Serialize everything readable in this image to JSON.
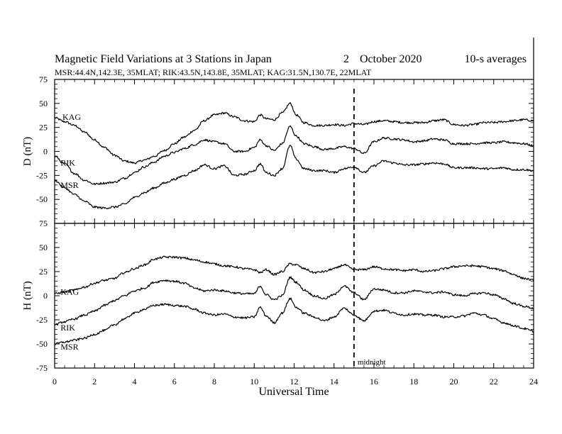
{
  "chart_data": {
    "type": "line",
    "title": "Magnetic Field Variations at 3 Stations in Japan",
    "date_day": "2",
    "date_month_year": "October 2020",
    "averaging": "10-s averages",
    "stations_info": "MSR:44.4N,142.3E, 35MLAT;  RIK:43.5N,143.8E, 35MLAT;  KAG:31.5N,130.7E, 22MLAT",
    "xlabel": "Universal Time",
    "xlim": [
      0,
      24
    ],
    "x_ticks": [
      "0",
      "2",
      "4",
      "6",
      "8",
      "10",
      "12",
      "14",
      "16",
      "18",
      "20",
      "22",
      "24"
    ],
    "annotation": {
      "label": "midnight",
      "x": 15
    },
    "panels": [
      {
        "component": "D",
        "ylabel": "D (nT)",
        "ylim": [
          -75,
          75
        ],
        "y_ticks": [
          "75",
          "50",
          "25",
          "0",
          "-25",
          "-50",
          "-75"
        ],
        "series": [
          {
            "name": "KAG",
            "label_x": 0.25,
            "label_y": 36,
            "x": [
              0,
              0.5,
              1,
              1.5,
              2,
              2.5,
              3,
              3.5,
              4,
              4.5,
              5,
              5.5,
              6,
              6.5,
              7,
              7.5,
              8,
              8.5,
              9,
              9.5,
              10,
              10.3,
              10.6,
              11,
              11.4,
              11.8,
              12.1,
              12.5,
              13,
              13.5,
              14,
              14.5,
              15,
              15.5,
              16,
              16.5,
              17,
              17.5,
              18,
              18.5,
              19,
              19.5,
              20,
              20.5,
              21,
              21.5,
              22,
              22.5,
              23,
              23.5,
              24
            ],
            "y": [
              35,
              31,
              27,
              20,
              12,
              4,
              -4,
              -10,
              -12,
              -9,
              -5,
              1,
              8,
              15,
              22,
              32,
              38,
              40,
              36,
              32,
              31,
              38,
              34,
              33,
              40,
              50,
              38,
              30,
              27,
              27,
              28,
              27,
              29,
              28,
              31,
              32,
              31,
              30,
              30,
              30,
              32,
              33,
              28,
              27,
              28,
              30,
              30,
              31,
              32,
              33,
              32
            ]
          },
          {
            "name": "RIK",
            "label_x": 0.15,
            "label_y": -12,
            "x": [
              0,
              0.5,
              1,
              1.5,
              2,
              2.5,
              3,
              3.5,
              4,
              4.5,
              5,
              5.5,
              6,
              6.5,
              7,
              7.5,
              8,
              8.5,
              9,
              9.5,
              10,
              10.3,
              10.6,
              11,
              11.4,
              11.8,
              12.1,
              12.5,
              13,
              13.5,
              14,
              14.5,
              15,
              15.5,
              16,
              16.5,
              17,
              17.5,
              18,
              18.5,
              19,
              19.5,
              20,
              20.5,
              21,
              21.5,
              22,
              22.5,
              23,
              23.5,
              24
            ],
            "y": [
              -5,
              -13,
              -23,
              -30,
              -34,
              -33,
              -32,
              -28,
              -22,
              -16,
              -11,
              -5,
              -1,
              3,
              7,
              12,
              10,
              8,
              0,
              0,
              4,
              12,
              6,
              1,
              8,
              26,
              16,
              8,
              5,
              2,
              3,
              5,
              3,
              -2,
              10,
              14,
              13,
              12,
              10,
              11,
              13,
              12,
              8,
              8,
              8,
              9,
              9,
              10,
              9,
              8,
              6
            ]
          },
          {
            "name": "MSR",
            "label_x": 0.15,
            "label_y": -35,
            "x": [
              0,
              0.5,
              1,
              1.5,
              2,
              2.5,
              3,
              3.5,
              4,
              4.5,
              5,
              5.5,
              6,
              6.5,
              7,
              7.5,
              8,
              8.5,
              9,
              9.5,
              10,
              10.3,
              10.6,
              11,
              11.4,
              11.8,
              12.1,
              12.5,
              13,
              13.5,
              14,
              14.5,
              15,
              15.5,
              16,
              16.5,
              17,
              17.5,
              18,
              18.5,
              19,
              19.5,
              20,
              20.5,
              21,
              21.5,
              22,
              22.5,
              23,
              23.5,
              24
            ],
            "y": [
              -30,
              -38,
              -45,
              -52,
              -58,
              -59,
              -58,
              -55,
              -48,
              -43,
              -38,
              -33,
              -29,
              -25,
              -20,
              -14,
              -18,
              -15,
              -25,
              -24,
              -20,
              -13,
              -22,
              -25,
              -18,
              6,
              -8,
              -18,
              -20,
              -20,
              -22,
              -18,
              -16,
              -22,
              -15,
              -10,
              -12,
              -14,
              -14,
              -13,
              -12,
              -13,
              -17,
              -17,
              -17,
              -18,
              -18,
              -17,
              -19,
              -19,
              -20
            ]
          }
        ]
      },
      {
        "component": "H",
        "ylabel": "H (nT)",
        "ylim": [
          -75,
          75
        ],
        "y_ticks": [
          "75",
          "50",
          "25",
          "0",
          "-25",
          "-50",
          "-75"
        ],
        "series": [
          {
            "name": "KAG",
            "label_x": 0.15,
            "label_y": 4,
            "x": [
              0,
              0.5,
              1,
              1.5,
              2,
              2.5,
              3,
              3.5,
              4,
              4.5,
              5,
              5.5,
              6,
              6.5,
              7,
              7.5,
              8,
              8.5,
              9,
              9.5,
              10,
              10.3,
              10.6,
              11,
              11.4,
              11.8,
              12.1,
              12.5,
              13,
              13.5,
              14,
              14.5,
              15,
              15.5,
              16,
              16.5,
              17,
              17.5,
              18,
              18.5,
              19,
              19.5,
              20,
              20.5,
              21,
              21.5,
              22,
              22.5,
              23,
              23.5,
              24
            ],
            "y": [
              2,
              4,
              6,
              9,
              13,
              16,
              18,
              24,
              28,
              32,
              38,
              40,
              40,
              39,
              37,
              35,
              33,
              31,
              30,
              28,
              27,
              24,
              27,
              22,
              25,
              33,
              32,
              28,
              24,
              25,
              28,
              32,
              27,
              27,
              30,
              28,
              27,
              26,
              27,
              25,
              26,
              28,
              30,
              31,
              31,
              30,
              28,
              26,
              22,
              18,
              16
            ]
          },
          {
            "name": "RIK",
            "label_x": 0.15,
            "label_y": -33,
            "x": [
              0,
              0.5,
              1,
              1.5,
              2,
              2.5,
              3,
              3.5,
              4,
              4.5,
              5,
              5.5,
              6,
              6.5,
              7,
              7.5,
              8,
              8.5,
              9,
              9.5,
              10,
              10.3,
              10.6,
              11,
              11.4,
              11.8,
              12.1,
              12.5,
              13,
              13.5,
              14,
              14.5,
              15,
              15.5,
              16,
              16.5,
              17,
              17.5,
              18,
              18.5,
              19,
              19.5,
              20,
              20.5,
              21,
              21.5,
              22,
              22.5,
              23,
              23.5,
              24
            ],
            "y": [
              -30,
              -27,
              -24,
              -20,
              -16,
              -10,
              -5,
              0,
              5,
              8,
              14,
              16,
              15,
              13,
              8,
              5,
              6,
              5,
              3,
              2,
              2,
              10,
              1,
              -4,
              0,
              19,
              14,
              6,
              0,
              -3,
              1,
              10,
              3,
              -4,
              7,
              6,
              3,
              3,
              5,
              4,
              3,
              4,
              1,
              0,
              2,
              3,
              1,
              -3,
              -8,
              -11,
              -13
            ]
          },
          {
            "name": "MSR",
            "label_x": 0.15,
            "label_y": -53,
            "x": [
              0,
              0.5,
              1,
              1.5,
              2,
              2.5,
              3,
              3.5,
              4,
              4.5,
              5,
              5.5,
              6,
              6.5,
              7,
              7.5,
              8,
              8.5,
              9,
              9.5,
              10,
              10.3,
              10.6,
              11,
              11.4,
              11.8,
              12.1,
              12.5,
              13,
              13.5,
              14,
              14.5,
              15,
              15.5,
              16,
              16.5,
              17,
              17.5,
              18,
              18.5,
              19,
              19.5,
              20,
              20.5,
              21,
              21.5,
              22,
              22.5,
              23,
              23.5,
              24
            ],
            "y": [
              -50,
              -48,
              -46,
              -44,
              -40,
              -36,
              -30,
              -24,
              -18,
              -14,
              -10,
              -9,
              -10,
              -11,
              -14,
              -18,
              -20,
              -19,
              -22,
              -23,
              -22,
              -12,
              -21,
              -28,
              -18,
              -3,
              -12,
              -18,
              -22,
              -26,
              -22,
              -13,
              -20,
              -26,
              -16,
              -15,
              -18,
              -20,
              -19,
              -20,
              -20,
              -22,
              -22,
              -21,
              -18,
              -20,
              -24,
              -28,
              -31,
              -34,
              -37
            ]
          }
        ]
      }
    ]
  }
}
